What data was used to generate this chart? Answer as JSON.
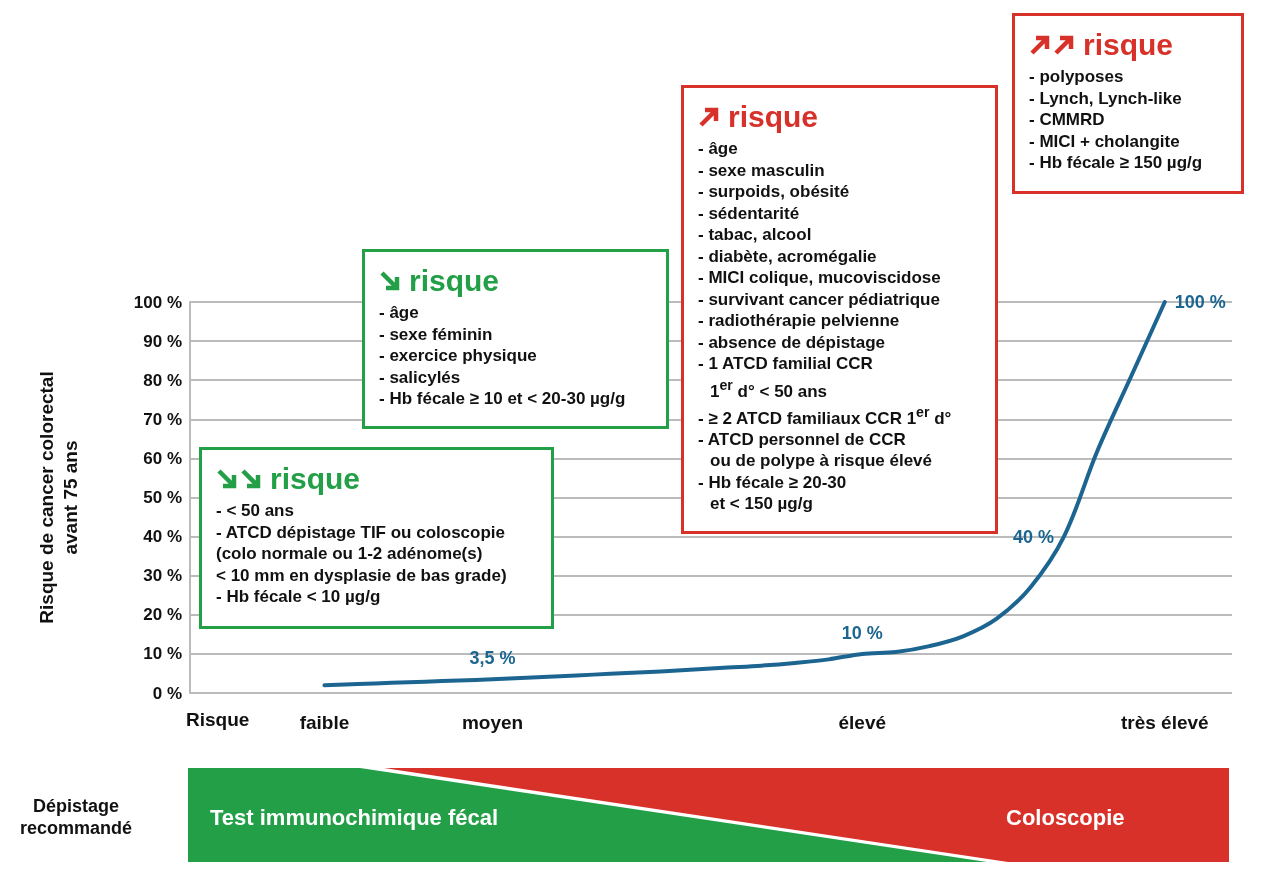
{
  "chart_data": {
    "type": "line",
    "xlabel": "Risque",
    "ylabel": "Risque de cancer colorectal\navant 75 ans",
    "categories": [
      null,
      null,
      null,
      null,
      "faible",
      null,
      null,
      null,
      null,
      "moyen",
      null,
      null,
      null,
      null,
      null,
      null,
      null,
      null,
      null,
      null,
      "élevé",
      null,
      null,
      null,
      null,
      null,
      null,
      null,
      null,
      "très élevé",
      null,
      null
    ],
    "values": [
      null,
      null,
      null,
      null,
      2,
      2.3,
      2.6,
      2.9,
      3.2,
      3.5,
      3.9,
      4.3,
      4.7,
      5.1,
      5.5,
      6,
      6.5,
      7,
      7.7,
      8.6,
      10,
      10.5,
      12,
      14.5,
      19,
      27,
      40,
      62,
      81,
      100,
      null,
      null
    ],
    "value_labels": [
      null,
      null,
      null,
      null,
      null,
      null,
      null,
      null,
      null,
      "3,5 %",
      null,
      null,
      null,
      null,
      null,
      null,
      null,
      null,
      null,
      null,
      "10 %",
      null,
      null,
      null,
      null,
      null,
      "40 %",
      null,
      null,
      "100 %",
      null,
      null
    ],
    "color": "#1c6591",
    "ylim": [
      0,
      100
    ],
    "yticks": [
      {
        "value": 0,
        "label": "0 %"
      },
      {
        "value": 10,
        "label": "10 %"
      },
      {
        "value": 20,
        "label": "20 %"
      },
      {
        "value": 30,
        "label": "30 %"
      },
      {
        "value": 40,
        "label": "40 %"
      },
      {
        "value": 50,
        "label": "50 %"
      },
      {
        "value": 60,
        "label": "60 %"
      },
      {
        "value": 70,
        "label": "70 %"
      },
      {
        "value": 80,
        "label": "80 %"
      },
      {
        "value": 90,
        "label": "90 %"
      },
      {
        "value": 100,
        "label": "100 %"
      }
    ],
    "grid": "y",
    "marker": "none",
    "line_style": "solid",
    "annotations": [
      "risque\n- < 50 ans\n- ATCD dépistage TIF ou coloscopie\n(colo normale ou 1-2 adénome(s)\n< 10 mm en dysplasie de bas grade)\n- Hb fécale < 10 µg/g",
      "risque\n- âge\n- sexe féminin\n- exercice physique\n- salicylés\n- Hb fécale ≥ 10 et < 20-30 µg/g",
      "risque\n- âge\n- sexe masculin\n- surpoids, obésité\n- sédentarité\n- tabac, alcool\n- diabète, acromégalie\n- MICI colique, mucoviscidose\n- survivant cancer pédiatrique\n- radiothérapie pelvienne\n- absence de dépistage\n- 1 ATCD familial CCR\n1$^{er}$ d° < 50 ans\n- ≥ 2 ATCD familiaux CCR 1$^{er}$ d°\n- ATCD personnel de CCR\nou de polype à risque élevé\n- Hb fécale ≥ 20-30\net < 150 µg/g",
      "risque\n- polyposes\n- Lynch, Lynch-like\n- CMMRD\n- MICI + cholangite\n- Hb fécale ≥ 150 µg/g",
      "Dépistage recommandé",
      "Test immunochimique fécal",
      "Coloscopie"
    ]
  }
}
